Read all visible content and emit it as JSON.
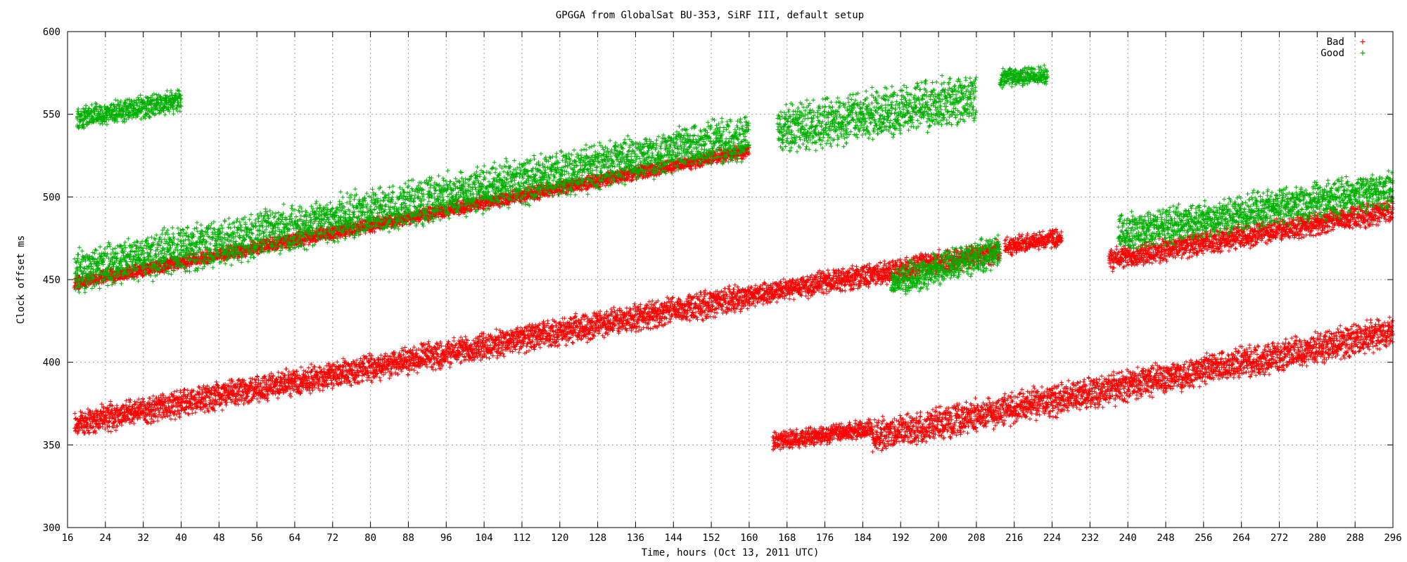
{
  "chart_data": {
    "type": "scatter",
    "title": "GPGGA from GlobalSat BU-353, SiRF III, default setup",
    "xlabel": "Time, hours (Oct 13, 2011 UTC)",
    "ylabel": "Clock offset ms",
    "xlim": [
      16,
      296
    ],
    "ylim": [
      300,
      600
    ],
    "xticks": [
      16,
      24,
      32,
      40,
      48,
      56,
      64,
      72,
      80,
      88,
      96,
      104,
      112,
      120,
      128,
      136,
      144,
      152,
      160,
      168,
      176,
      184,
      192,
      200,
      208,
      216,
      224,
      232,
      240,
      248,
      256,
      264,
      272,
      280,
      288,
      296
    ],
    "yticks": [
      300,
      350,
      400,
      450,
      500,
      550,
      600
    ],
    "grid": true,
    "legend_position": "top-right",
    "marker": "+",
    "series": [
      {
        "name": "Bad",
        "color": "#ff0000",
        "segments": [
          {
            "x": [
              17.5,
              160
            ],
            "y_start": 363,
            "y_end": 440,
            "spread": 12
          },
          {
            "x": [
              160,
              213
            ],
            "y_start": 440,
            "y_end": 467,
            "spread": 10
          },
          {
            "x": [
              186,
              296
            ],
            "y_start": 355,
            "y_end": 418,
            "spread": 14
          },
          {
            "x": [
              165,
              186
            ],
            "y_start": 352,
            "y_end": 360,
            "spread": 8
          },
          {
            "x": [
              17.5,
              160
            ],
            "y_start": 448,
            "y_end": 528,
            "spread": 6
          },
          {
            "x": [
              214,
              226
            ],
            "y_start": 470,
            "y_end": 476,
            "spread": 8
          },
          {
            "x": [
              236,
              296
            ],
            "y_start": 462,
            "y_end": 492,
            "spread": 10
          }
        ]
      },
      {
        "name": "Good",
        "color": "#00b000",
        "segments": [
          {
            "x": [
              17.5,
              160
            ],
            "y_start": 455,
            "y_end": 537,
            "spread": 20
          },
          {
            "x": [
              18,
              40
            ],
            "y_start": 548,
            "y_end": 558,
            "spread": 10
          },
          {
            "x": [
              166,
              208
            ],
            "y_start": 540,
            "y_end": 560,
            "spread": 22
          },
          {
            "x": [
              213,
              223
            ],
            "y_start": 572,
            "y_end": 574,
            "spread": 8
          },
          {
            "x": [
              190,
              213
            ],
            "y_start": 448,
            "y_end": 468,
            "spread": 14
          },
          {
            "x": [
              238,
              296
            ],
            "y_start": 478,
            "y_end": 505,
            "spread": 16
          }
        ]
      }
    ]
  }
}
